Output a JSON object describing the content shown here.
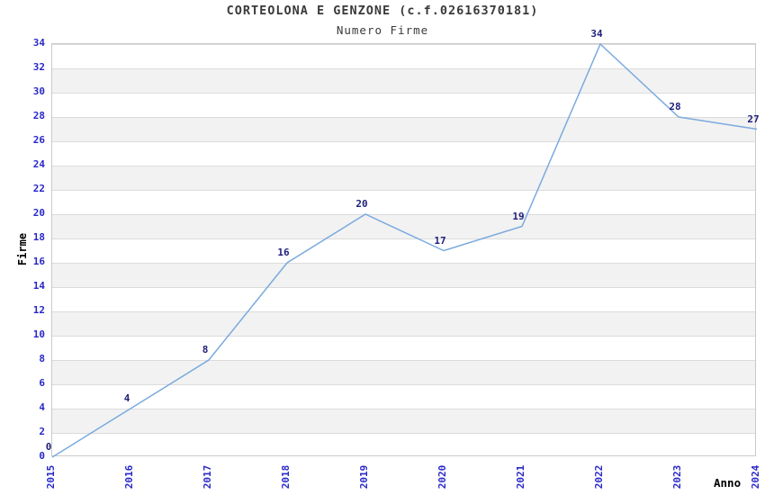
{
  "chart_data": {
    "type": "line",
    "title": "CORTEOLONA E GENZONE (c.f.02616370181)",
    "subtitle": "Numero Firme",
    "xlabel": "Anno",
    "ylabel": "Firme",
    "categories": [
      "2015",
      "2016",
      "2017",
      "2018",
      "2019",
      "2020",
      "2021",
      "2022",
      "2023",
      "2024"
    ],
    "values": [
      0,
      4,
      8,
      16,
      20,
      17,
      19,
      34,
      28,
      27
    ],
    "point_labels": [
      "0",
      "4",
      "8",
      "16",
      "20",
      "17",
      "19",
      "34",
      "28",
      "27"
    ],
    "ylim": [
      0,
      34
    ],
    "ytick_step": 2,
    "yticks": [
      0,
      2,
      4,
      6,
      8,
      10,
      12,
      14,
      16,
      18,
      20,
      22,
      24,
      26,
      28,
      30,
      32,
      34
    ],
    "grid": "horizontal-bands-alternating",
    "legend": "none",
    "colors": {
      "line": "#7aaade",
      "tick_label": "#2828c8",
      "data_label": "#20207a",
      "band_gray": "#f2f2f2",
      "band_white": "#ffffff",
      "grid_line": "#dcdcdc",
      "plot_border": "#c9c9c9",
      "title_text": "#3a3a3a",
      "axis_title_text": "#000000"
    }
  }
}
